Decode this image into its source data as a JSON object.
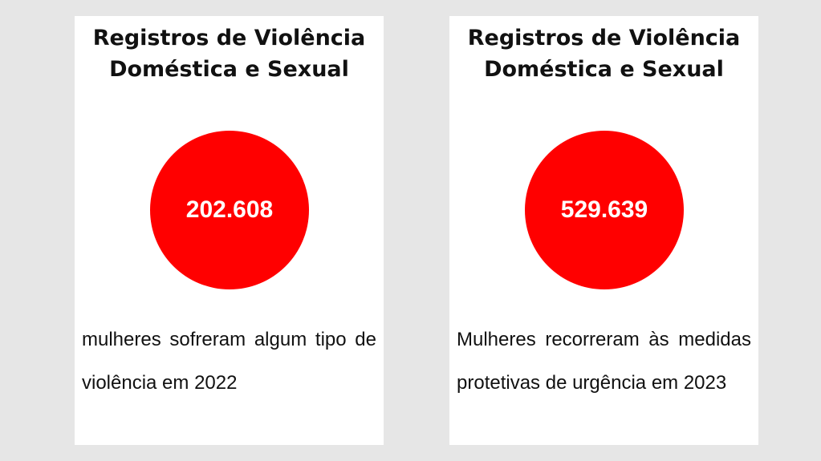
{
  "cards": [
    {
      "title_line1": "Registros de Violência",
      "title_line2": "Doméstica e Sexual",
      "value": "202.608",
      "description": "mulheres sofreram algum tipo de violência em 2022"
    },
    {
      "title_line1": "Registros de Violência",
      "title_line2": "Doméstica e Sexual",
      "value": "529.639",
      "description": "Mulheres recorreram às medidas protetivas de urgência em 2023"
    }
  ],
  "colors": {
    "background": "#e6e6e6",
    "card": "#ffffff",
    "circle": "#ff0000",
    "text": "#111111"
  }
}
